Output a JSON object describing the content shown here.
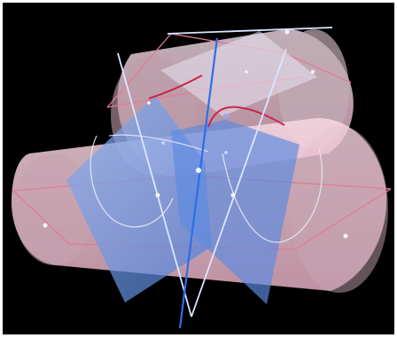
{
  "scene": {
    "background": "#000000",
    "frame_color": "#ffffff",
    "colors": {
      "cylinder_fill": "#f7d2df",
      "cylinder_edge": "#f2c3d2",
      "rect_outline": "#e47a97",
      "intersection_curve": "#c8254a",
      "plane_fill": "#6f9ae8",
      "plane_edge": "#a9c4f2",
      "vertical_axis": "#2d6ee8",
      "pale_axis": "#dbe6ff",
      "point": "#f5f5f5"
    },
    "objects": [
      "cylinder-back",
      "cylinder-front",
      "intersecting-plane-left",
      "intersecting-plane-right",
      "top-plane",
      "vertical-axis",
      "intersection-curve"
    ]
  }
}
